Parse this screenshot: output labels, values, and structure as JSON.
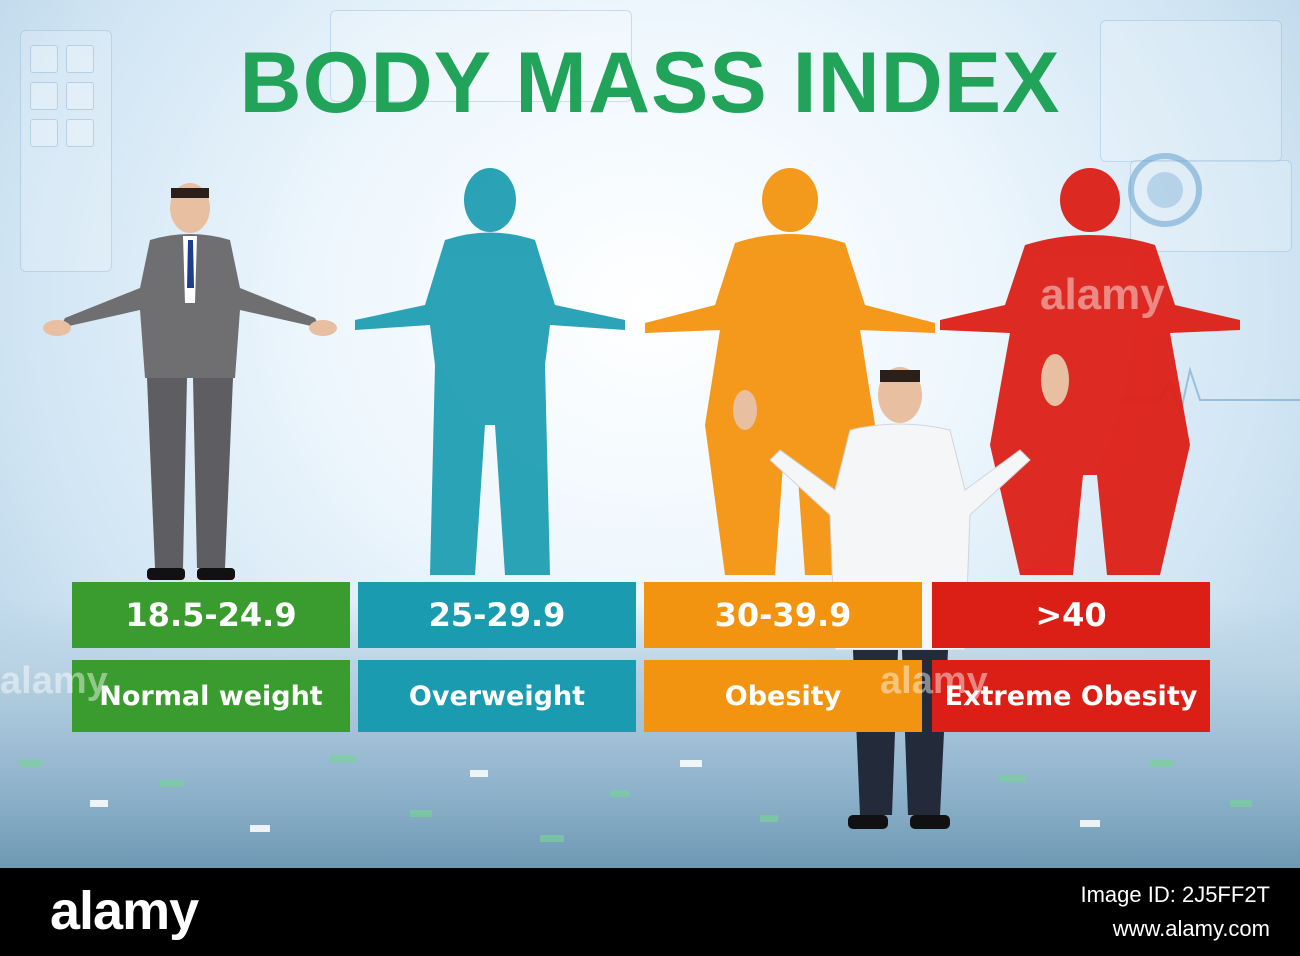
{
  "title": "BODY MASS INDEX",
  "categories": [
    {
      "range": "18.5-24.9",
      "label": "Normal weight",
      "color": "#3a9c2f"
    },
    {
      "range": "25-29.9",
      "label": "Overweight",
      "color": "#1a9bb0"
    },
    {
      "range": "30-39.9",
      "label": "Obesity",
      "color": "#f39410"
    },
    {
      "range": ">40",
      "label": "Extreme Obesity",
      "color": "#dc1f16"
    }
  ],
  "watermark": "alamy",
  "footer": {
    "brand": "alamy",
    "image_id": "Image ID: 2J5FF2T",
    "url": "www.alamy.com"
  }
}
